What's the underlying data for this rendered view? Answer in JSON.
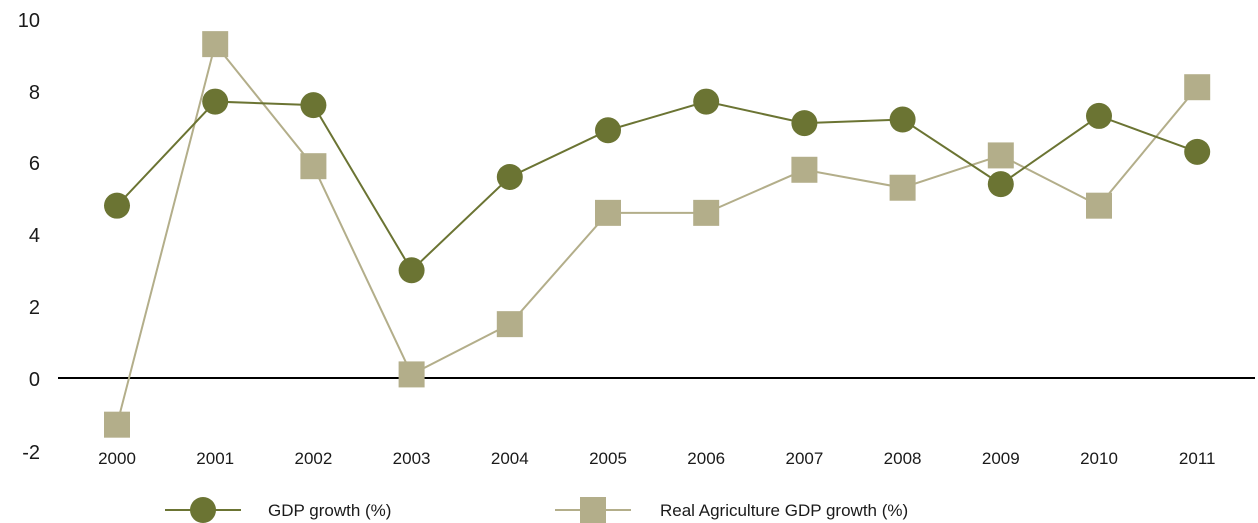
{
  "chart_data": {
    "type": "line",
    "title": "",
    "xlabel": "",
    "ylabel": "",
    "x": [
      "2000",
      "2001",
      "2002",
      "2003",
      "2004",
      "2005",
      "2006",
      "2007",
      "2008",
      "2009",
      "2010",
      "2011"
    ],
    "ylim": [
      -2,
      10
    ],
    "yticks": [
      "10",
      "8",
      "6",
      "4",
      "2",
      "0",
      "-2"
    ],
    "grid": false,
    "legend_position": "bottom",
    "series": [
      {
        "name": "GDP growth (%)",
        "marker": "circle",
        "color": "#6b7433",
        "values": [
          4.8,
          7.7,
          7.6,
          3.0,
          5.6,
          6.9,
          7.7,
          7.1,
          7.2,
          5.4,
          7.3,
          6.3
        ]
      },
      {
        "name": "Real Agriculture GDP growth (%)",
        "marker": "square",
        "color": "#b3ae8a",
        "values": [
          -1.3,
          9.3,
          5.9,
          0.1,
          1.5,
          4.6,
          4.6,
          5.8,
          5.3,
          6.2,
          4.8,
          8.1
        ]
      }
    ]
  }
}
